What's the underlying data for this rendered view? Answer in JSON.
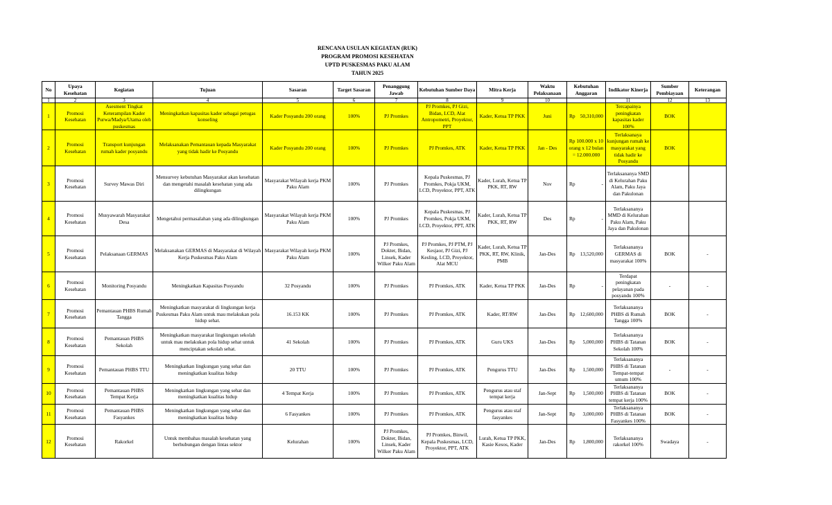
{
  "titles": [
    "RENCANA USULAN KEGIATAN (RUK)",
    "PROGRAM PROMOSI KESEHATAN",
    "UPTD PUSKESMAS PAKU ALAM",
    "TAHUN 2025"
  ],
  "colors": {
    "highlight": "#ffff00"
  },
  "headers": [
    "No",
    "Upaya Kesehatan",
    "Kegiatan",
    "Tujuan",
    "Sasaran",
    "Target Sasaran",
    "Penanggung Jawab",
    "Kebutuhan Sumber Daya",
    "Mitra Kerja",
    "Waktu Pelaksanaan",
    "Kebutuhan Anggaran",
    "Indikator Kinerja",
    "Sumber Pembiayaan",
    "Keterangan"
  ],
  "column_numbers": [
    "1",
    "2",
    "3",
    "4",
    "5",
    "6",
    "7",
    "8",
    "9",
    "10",
    "",
    "11",
    "12",
    "13"
  ],
  "rows": [
    {
      "highlight": true,
      "cells": [
        "1",
        "Promosi Kesehatan",
        "Asesment Tingkat Keterampilan Kader Purwa/Madya/Utama oleh puskesmas",
        "Meningkatkan kapasitas kader sebagai petugas konseling",
        "Kader Posyandu 200 orang",
        "100%",
        "PJ Promkes",
        "PJ Promkes, PJ Gizi, Bidan, LCD, Alat Antropometri, Proyektor, PPT",
        "Kader, Ketua TP PKK",
        "Juni",
        {
          "prefix": "Rp",
          "amount": "50,310,000"
        },
        "Tercapainya peningkatan kapasitas kader 100%",
        "BOK",
        ""
      ]
    },
    {
      "highlight": true,
      "cells": [
        "2",
        "Promosi Kesehatan",
        "Transport kunjungan rumah kader posyandu",
        "Melaksanakan Pemantauan kepada Masyarakat yang tidak hadir ke Posyandu",
        "Kader Posyandu 200 orang",
        "100%",
        "PJ Promkes",
        "PJ Promkes, ATK",
        "Kader, Ketua TP PKK",
        "Jan - Des",
        "Rp 100.000 x 10 orang x 12 bulan = 12.000.000",
        "Terlaksanaya kunjungan rumah ke masyarakat yang tidak hadir ke Posyandu",
        "BOK",
        ""
      ]
    },
    {
      "highlight": false,
      "cells": [
        "3",
        "Promosi Kesehatan",
        "Survey Mawas Diri",
        "Mensurvey kebutuhan Masyarakat akan kesehatan dan mengetahi masalah kesehatan yang ada dilingkungan",
        "Masyarakat Wilayah kerja PKM Paku Alam",
        "100%",
        "PJ Promkes",
        "Kepala Puskesmas, PJ Promkes, Pokja UKM, LCD, Proyektor, PPT, ATK",
        "Kader, Lurah, Ketua TP PKK, RT, RW",
        "Nov",
        {
          "prefix": "Rp",
          "amount": "-"
        },
        "Terlaksananya SMD di Kelurahan Paku Alam, Paku Jaya dan Pakulonan",
        "",
        ""
      ]
    },
    {
      "highlight": false,
      "cells": [
        "4",
        "Promosi Kesehatan",
        "Musyawarah Masyarakat Desa",
        "Mengetahui permasalahan yang ada dilingkungan",
        "Masyarakat Wilayah kerja PKM Paku Alam",
        "100%",
        "PJ Promkes",
        "Kepala Puskesmas, PJ Promkes, Pokja UKM, LCD, Proyektor, PPT, ATK",
        "Kader, Lurah, Ketua TP PKK, RT, RW",
        "Des",
        {
          "prefix": "Rp",
          "amount": "-"
        },
        "Terlaksananya MMD di Kelurahan Paku Alam, Paku Jaya dan Pakulonan",
        "",
        ""
      ]
    },
    {
      "highlight": false,
      "cells": [
        "5",
        "Promosi Kesehatan",
        "Pelaksanaan GERMAS",
        "Melaksanakan GERMAS di Masyarakat di Wilayah Kerja Puskesmas Paku Alam",
        "Masyarakat Wilayah kerja PKM Paku Alam",
        "100%",
        "PJ Promkes, Dokter, Bidan, Linsek, Kader Wilker Paku Alam",
        "PJ Promkes, PJ PTM, PJ Kesjaor, PJ Gizi, PJ Kesling, LCD, Proyektor, Alat MCU",
        "Kader, Lurah, Ketua TP PKK, RT, RW, Klinik, PMB",
        "Jan-Des",
        {
          "prefix": "Rp",
          "amount": "13,520,000"
        },
        "Terlaksananya GERMAS di masyarakat 100%",
        "BOK",
        "-"
      ]
    },
    {
      "highlight": false,
      "cells": [
        "6",
        "Promosi Kesehatan",
        "Monitoring Posyandu",
        "Meningkatkan Kapasitas Posyandu",
        "32 Posyandu",
        "100%",
        "PJ Promkes",
        "PJ Promkes, ATK",
        "Kader, Ketua TP PKK",
        "Jan-Des",
        {
          "prefix": "Rp",
          "amount": "-"
        },
        "Terdapat peningkatan pelayanan pada posyandu 100%",
        "-",
        "-"
      ]
    },
    {
      "highlight": false,
      "cells": [
        "7",
        "Promosi Kesehatan",
        "Pemantauan PHBS Rumah Tangga",
        "Meningkatkan masyarakat di lingkungan kerja Puskesmas Paku Alam untuk mau melakukan pola hidup sehat.",
        "16.153 KK",
        "100%",
        "PJ Promkes",
        "PJ Promkes, ATK",
        "Kader, RT/RW",
        "Jan-Des",
        {
          "prefix": "Rp",
          "amount": "12,600,000"
        },
        "Terlaksananya PHBS di Rumah Tangga 100%",
        "BOK",
        "-"
      ]
    },
    {
      "highlight": false,
      "cells": [
        "8",
        "Promosi Kesehatan",
        "Pemantauan PHBS Sekolah",
        "Meningkatkan masyarakat lingkungan sekolah untuk mau melakukan pola hidup sehat untuk menciptakan sekolah sehat.",
        "41 Sekolah",
        "100%",
        "PJ Promkes",
        "PJ Promkes, ATK",
        "Guru UKS",
        "Jan-Des",
        {
          "prefix": "Rp",
          "amount": "5,000,000"
        },
        "Terlaksananya PHBS di Tatanan Sekolah 100%",
        "BOK",
        "-"
      ]
    },
    {
      "highlight": false,
      "cells": [
        "9",
        "Promosi Kesehatan",
        "Pemantauan PHBS TTU",
        "Meningkatkan lingkungan yang sehat dan meningkatkan kualitas hidup",
        "20 TTU",
        "100%",
        "PJ Promkes",
        "PJ Promkes, ATK",
        "Pengurus TTU",
        "Jan-Des",
        {
          "prefix": "Rp",
          "amount": "1,500,000"
        },
        "Terlaksananya PHBS di Tatanan Tempat-tempat umum 100%",
        "-",
        "-"
      ]
    },
    {
      "highlight": false,
      "cells": [
        "10",
        "Promosi Kesehatan",
        "Pemantauan PHBS Tempat Kerja",
        "Meningkatkan lingkungan yang sehat dan meningkatkan kualitas hidup",
        "4 Tempat Kerja",
        "100%",
        "PJ Promkes",
        "PJ Promkes, ATK",
        "Pengurus atau staf tempat kerja",
        "Jan-Sept",
        {
          "prefix": "Rp",
          "amount": "1,500,000"
        },
        "Terlaksananya PHBS di Tatanan tempat kerja 100%",
        "BOK",
        "-"
      ]
    },
    {
      "highlight": false,
      "cells": [
        "11",
        "Promosi Kesehatan",
        "Pemantauan PHBS Fasyankes",
        "Meningkatkan lingkungan yang sehat dan meningkatkan kualitas hidup",
        "6 Fasyankes",
        "100%",
        "PJ Promkes",
        "PJ Promkes, ATK",
        "Pengurus atau staf fasyankes",
        "Jan-Sept",
        {
          "prefix": "Rp",
          "amount": "3,000,000"
        },
        "Terlaksananya PHBS di Tatanan Fasyankes 100%",
        "BOK",
        "-"
      ]
    },
    {
      "highlight": false,
      "cells": [
        "12",
        "Promosi Kesehatan",
        "Rakorkel",
        "Untuk membahas masalah kesehatan yang berhubungan dengan lintas sektor",
        "Kelurahan",
        "100%",
        "PJ Promkes, Dokter, Bidan, Linsek, Kader Wilker Paku Alam",
        "PJ Promkes, Binwil, Kepala Puskesmas, LCD, Proyektor,  PPT, ATK",
        "Lurah, Ketua TP PKK, Kasie Kesos, Kader",
        "Jan-Des",
        {
          "prefix": "Rp",
          "amount": "1,800,000"
        },
        "Terlaksananya rakorkel 100%",
        "Swadaya",
        "-"
      ]
    }
  ]
}
